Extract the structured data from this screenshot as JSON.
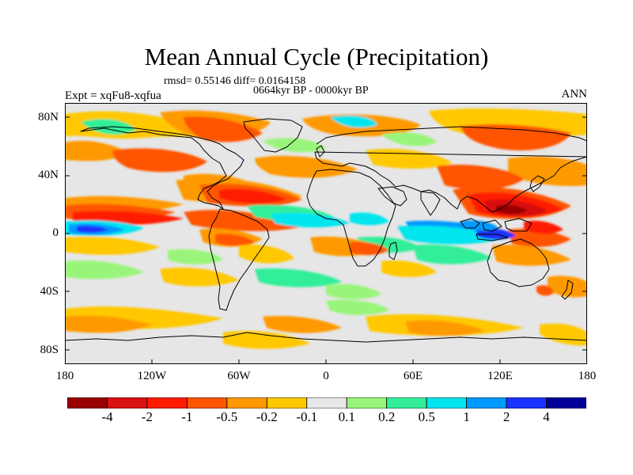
{
  "title": "Mean Annual Cycle (Precipitation)",
  "stats": "rmsd= 0.55146  diff= 0.0164158",
  "period": "0664kyr BP - 0000kyr BP",
  "experiment": "Expt = xqFu8-xqfua",
  "season": "ANN",
  "map": {
    "projection": "cylindrical equidistant",
    "lat_labels": [
      "80N",
      "40N",
      "0",
      "40S",
      "80S"
    ],
    "lon_labels": [
      "180",
      "120W",
      "60W",
      "0",
      "60E",
      "120E",
      "180"
    ],
    "colors": {
      "background": "#e6e6e6",
      "coastline": "#000000"
    }
  },
  "colorbar": {
    "labels": [
      "-4",
      "-2",
      "-1",
      "-0.5",
      "-0.2",
      "-0.1",
      "0.1",
      "0.2",
      "0.5",
      "1",
      "2",
      "4"
    ],
    "colors": [
      "#990000",
      "#d81111",
      "#ff1a00",
      "#ff5500",
      "#ff9900",
      "#ffc800",
      "#e8e8e8",
      "#99f57a",
      "#33ee99",
      "#00e5ee",
      "#0099ff",
      "#1a33ff",
      "#000099"
    ]
  }
}
